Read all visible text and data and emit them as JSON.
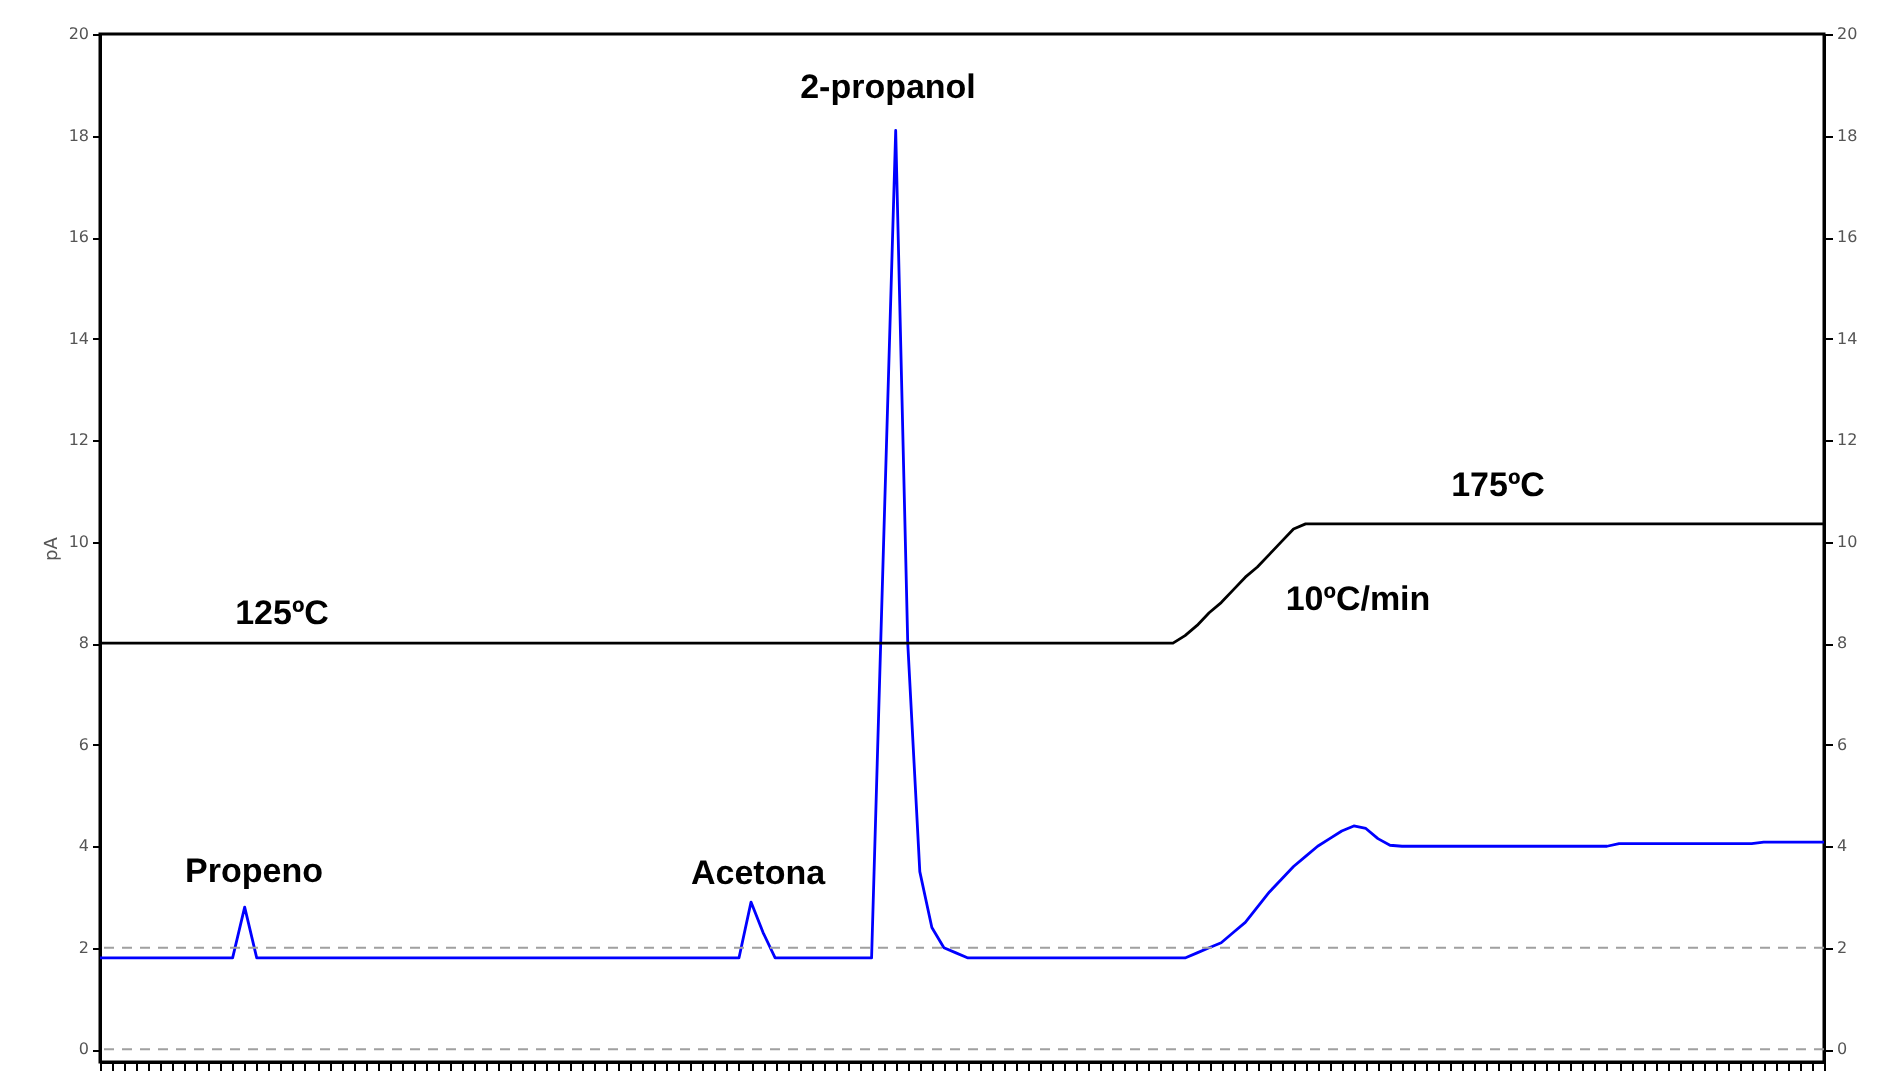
{
  "chart_data": {
    "type": "line",
    "ylabel": "pA",
    "categories": [
      null,
      null,
      null,
      null,
      null,
      null,
      null,
      null,
      null,
      null,
      null,
      null,
      null,
      null,
      null,
      null,
      null,
      null,
      null,
      null,
      null,
      null,
      null,
      null,
      null,
      null,
      null,
      null,
      null,
      null,
      null,
      null,
      null,
      null,
      null,
      null,
      null,
      null,
      null,
      null,
      null,
      null,
      null,
      null,
      null,
      null,
      null,
      null,
      null,
      null,
      null,
      null,
      null,
      null,
      null,
      null,
      null,
      null,
      null,
      null,
      null,
      null,
      null,
      null,
      null,
      null,
      null,
      null,
      null,
      null,
      null,
      null,
      null,
      null,
      null,
      null,
      null,
      null,
      null,
      null,
      null,
      null,
      null,
      null,
      null,
      null,
      null,
      null,
      null,
      null,
      null,
      null,
      null,
      null,
      null,
      null,
      null,
      null,
      null,
      null,
      null,
      null,
      null,
      null,
      null,
      null,
      null,
      null,
      null,
      null,
      null,
      null,
      null,
      null,
      null,
      null,
      null,
      null,
      null,
      null,
      null,
      null,
      null,
      null,
      null,
      null,
      null,
      null,
      null,
      null,
      null,
      null,
      null,
      null,
      null,
      null,
      null,
      null,
      null,
      null,
      null,
      null,
      null,
      null
    ],
    "series": [
      {
        "color": "#0000ff",
        "values": [
          1.8,
          1.8,
          1.8,
          1.8,
          1.8,
          1.8,
          1.8,
          1.8,
          1.8,
          1.8,
          1.8,
          1.8,
          2.8,
          1.8,
          1.8,
          1.8,
          1.8,
          1.8,
          1.8,
          1.8,
          1.8,
          1.8,
          1.8,
          1.8,
          1.8,
          1.8,
          1.8,
          1.8,
          1.8,
          1.8,
          1.8,
          1.8,
          1.8,
          1.8,
          1.8,
          1.8,
          1.8,
          1.8,
          1.8,
          1.8,
          1.8,
          1.8,
          1.8,
          1.8,
          1.8,
          1.8,
          1.8,
          1.8,
          1.8,
          1.8,
          1.8,
          1.8,
          1.8,
          1.8,
          2.9,
          2.3,
          1.8,
          1.8,
          1.8,
          1.8,
          1.8,
          1.8,
          1.8,
          1.8,
          1.8,
          10,
          18.1,
          8,
          3.5,
          2.4,
          2.0,
          1.9,
          1.8,
          1.8,
          1.8,
          1.8,
          1.8,
          1.8,
          1.8,
          1.8,
          1.8,
          1.8,
          1.8,
          1.8,
          1.8,
          1.8,
          1.8,
          1.8,
          1.8,
          1.8,
          1.8,
          1.9,
          2.0,
          2.1,
          2.3,
          2.5,
          2.8,
          3.1,
          3.35,
          3.6,
          3.8,
          4.0,
          4.15,
          4.3,
          4.4,
          4.35,
          4.15,
          4.02,
          4.0,
          4.0,
          4.0,
          4.0,
          4.0,
          4.0,
          4.0,
          4.0,
          4.0,
          4.0,
          4.0,
          4.0,
          4.0,
          4.0,
          4.0,
          4.0,
          4.0,
          4.0,
          4.05,
          4.05,
          4.05,
          4.05,
          4.05,
          4.05,
          4.05,
          4.05,
          4.05,
          4.05,
          4.05,
          4.05,
          4.08,
          4.08,
          4.08,
          4.08,
          4.08,
          4.08
        ]
      },
      {
        "color": "#000000",
        "values": [
          8,
          8,
          8,
          8,
          8,
          8,
          8,
          8,
          8,
          8,
          8,
          8,
          8,
          8,
          8,
          8,
          8,
          8,
          8,
          8,
          8,
          8,
          8,
          8,
          8,
          8,
          8,
          8,
          8,
          8,
          8,
          8,
          8,
          8,
          8,
          8,
          8,
          8,
          8,
          8,
          8,
          8,
          8,
          8,
          8,
          8,
          8,
          8,
          8,
          8,
          8,
          8,
          8,
          8,
          8,
          8,
          8,
          8,
          8,
          8,
          8,
          8,
          8,
          8,
          8,
          8,
          8,
          8,
          8,
          8,
          8,
          8,
          8,
          8,
          8,
          8,
          8,
          8,
          8,
          8,
          8,
          8,
          8,
          8,
          8,
          8,
          8,
          8,
          8,
          8,
          8.15,
          8.35,
          8.6,
          8.8,
          9.05,
          9.3,
          9.5,
          9.75,
          10.0,
          10.25,
          10.35,
          10.35,
          10.35,
          10.35,
          10.35,
          10.35,
          10.35,
          10.35,
          10.35,
          10.35,
          10.35,
          10.35,
          10.35,
          10.35,
          10.35,
          10.35,
          10.35,
          10.35,
          10.35,
          10.35,
          10.35,
          10.35,
          10.35,
          10.35,
          10.35,
          10.35,
          10.35,
          10.35,
          10.35,
          10.35,
          10.35,
          10.35,
          10.35,
          10.35,
          10.35,
          10.35,
          10.35,
          10.35,
          10.35,
          10.35,
          10.35,
          10.35,
          10.35,
          10.35
        ]
      }
    ],
    "ylim": [
      -0.25,
      20
    ],
    "yticks": [
      0,
      2,
      4,
      6,
      8,
      10,
      12,
      14,
      16,
      18,
      20
    ],
    "y2lim": [
      -0.25,
      20
    ],
    "y2ticks": [
      0,
      2,
      4,
      6,
      8,
      10,
      12,
      14,
      16,
      18,
      20
    ],
    "ref_lines": [
      {
        "axis": "y",
        "value": 0,
        "color": "#a0a0a0",
        "line_style": "dashed"
      },
      {
        "axis": "y",
        "value": 2,
        "color": "#a0a0a0",
        "line_style": "dashed"
      }
    ],
    "annotations": [
      "Propeno",
      "Acetona",
      "2-propanol",
      "125ºC",
      "175ºC",
      "10ºC/min"
    ]
  }
}
